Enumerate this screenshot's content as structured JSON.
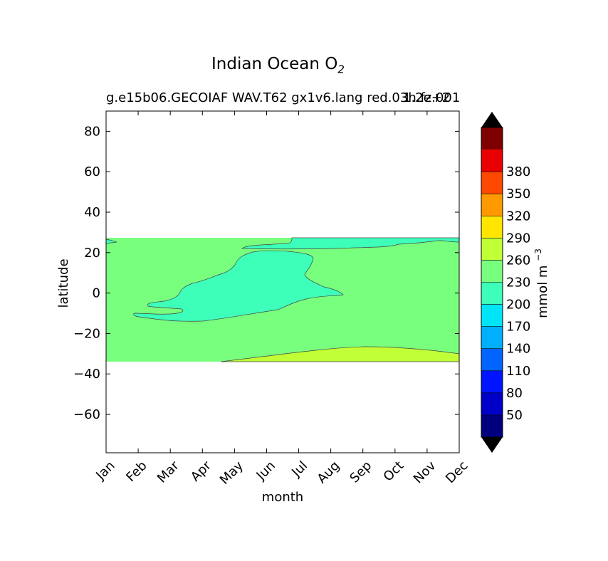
{
  "chart_data": {
    "type": "contourf",
    "title": "Indian Ocean O",
    "title_subscript": "2",
    "subtitle": "g.e15b06.GECOIAF WAV.T62 gx1v6.lang red.03h.fz.001",
    "subtitle_overlap": "1.2e+2",
    "xlabel": "month",
    "ylabel": "latitude",
    "x_ticks": [
      "Jan",
      "Feb",
      "Mar",
      "Apr",
      "May",
      "Jun",
      "Jul",
      "Aug",
      "Sep",
      "Oct",
      "Nov",
      "Dec"
    ],
    "y_ticks": [
      80,
      60,
      40,
      20,
      0,
      -20,
      -40,
      -60
    ],
    "xlim": [
      0,
      11
    ],
    "ylim": [
      -79,
      90
    ],
    "data_lat_range": [
      -34,
      27
    ],
    "colorbar": {
      "label": "mmol m",
      "label_superscript": "−3",
      "levels": [
        50,
        80,
        110,
        140,
        170,
        200,
        230,
        260,
        290,
        320,
        350,
        380
      ],
      "colors": [
        "#00007f",
        "#0000c8",
        "#0014ff",
        "#0064ff",
        "#00b0ff",
        "#00e4f8",
        "#3dffba",
        "#78ff7e",
        "#c1ff36",
        "#ffe500",
        "#ff9900",
        "#ff4800",
        "#e80000",
        "#7f0000"
      ],
      "extend": "both"
    },
    "regions": [
      {
        "range": [
          200,
          230
        ],
        "color": "#78ff7e",
        "description": "background band"
      },
      {
        "range": [
          170,
          200
        ],
        "color": "#3dffba",
        "description": "low-O2 tongue"
      },
      {
        "range": [
          230,
          260
        ],
        "color": "#c1ff36",
        "description": "southern band"
      }
    ]
  }
}
